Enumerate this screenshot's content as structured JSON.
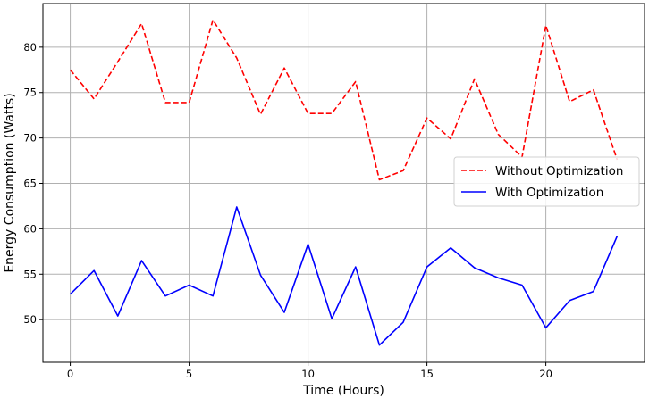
{
  "chart_data": {
    "type": "line",
    "title": "",
    "xlabel": "Time (Hours)",
    "ylabel": "Energy Consumption (Watts)",
    "xlim": [
      -1.15,
      24.15
    ],
    "ylim": [
      45.3,
      84.8
    ],
    "xticks": [
      0,
      5,
      10,
      15,
      20
    ],
    "yticks": [
      50,
      55,
      60,
      65,
      70,
      75,
      80
    ],
    "grid": true,
    "legend_position": "right",
    "x": [
      0,
      1,
      2,
      3,
      4,
      5,
      6,
      7,
      8,
      9,
      10,
      11,
      12,
      13,
      14,
      15,
      16,
      17,
      18,
      19,
      20,
      21,
      22,
      23
    ],
    "series": [
      {
        "name": "Without Optimization",
        "color": "#ff0000",
        "style": "dashed",
        "values": [
          77.5,
          74.3,
          78.4,
          82.6,
          73.9,
          73.9,
          83.0,
          78.8,
          72.6,
          77.7,
          72.7,
          72.7,
          76.2,
          65.4,
          66.4,
          72.2,
          69.9,
          76.5,
          70.4,
          67.9,
          82.4,
          74.0,
          75.3,
          67.6
        ]
      },
      {
        "name": "With Optimization",
        "color": "#0000ff",
        "style": "solid",
        "values": [
          52.8,
          55.4,
          50.4,
          56.5,
          52.6,
          53.8,
          52.6,
          62.4,
          54.9,
          50.8,
          58.3,
          50.1,
          55.8,
          47.2,
          49.7,
          55.8,
          57.9,
          55.7,
          54.6,
          53.8,
          49.1,
          52.1,
          53.1,
          59.2
        ]
      }
    ]
  }
}
